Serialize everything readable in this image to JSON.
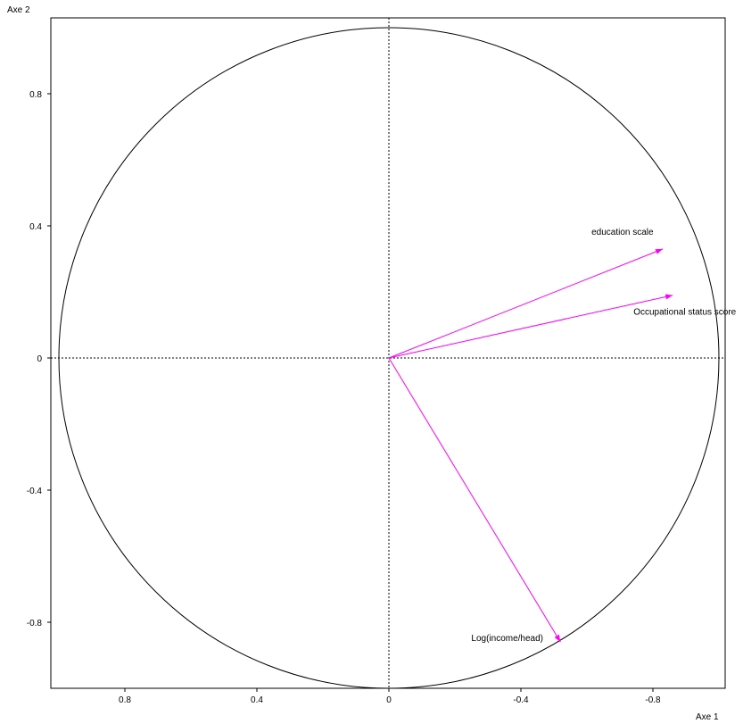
{
  "chart_data": {
    "type": "scatter",
    "subtype": "correlation-circle",
    "title": "",
    "xlabel": "Axe 1",
    "ylabel": "Axe 2",
    "x_axis_reversed": true,
    "xlim": [
      1.0,
      -1.02
    ],
    "ylim": [
      -1.0,
      1.0
    ],
    "x_ticks": [
      0.8,
      0.4,
      0,
      -0.4,
      -0.8
    ],
    "x_tick_labels": [
      "0.8",
      "0.4",
      "0",
      "-0.4",
      "-0.8"
    ],
    "y_ticks": [
      0.8,
      0.4,
      0,
      -0.4,
      -0.8
    ],
    "y_tick_labels": [
      "0.8",
      "0.4",
      "0",
      "-0.4",
      "-0.8"
    ],
    "grid": false,
    "reference_lines": "dashed lines at x=0 and y=0",
    "circle_radius": 1.0,
    "vectors": [
      {
        "label": "education scale",
        "x": -0.83,
        "y": 0.33
      },
      {
        "label": "Occupational status score",
        "x": -0.86,
        "y": 0.19
      },
      {
        "label": "Log(income/head)",
        "x": -0.52,
        "y": -0.86
      }
    ],
    "colors": {
      "vector": "#ff00ff",
      "circle": "#000000",
      "axes": "#000000"
    }
  }
}
